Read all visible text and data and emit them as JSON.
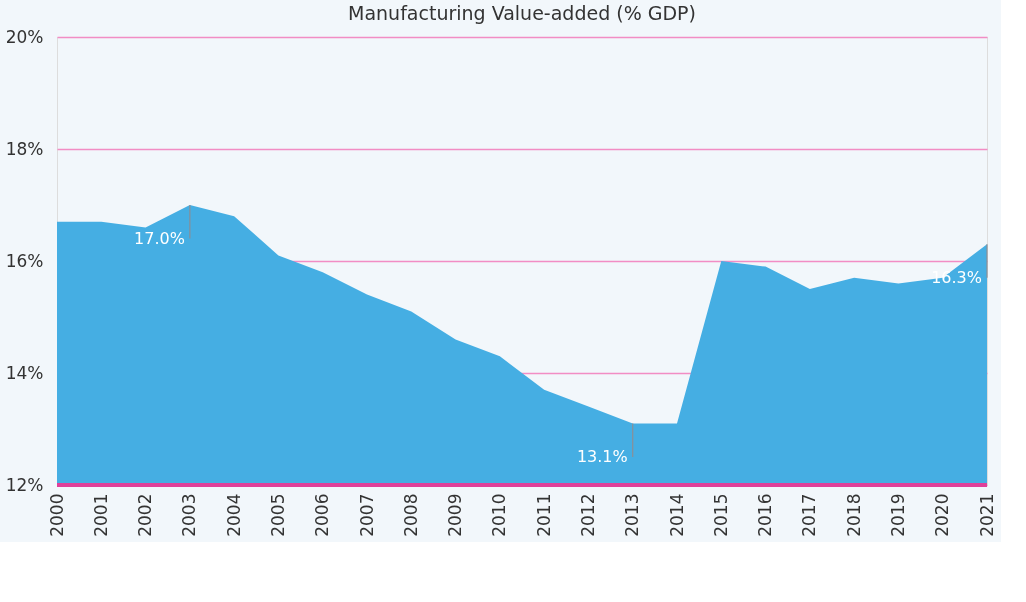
{
  "chart_data": {
    "type": "area",
    "title": "Manufacturing Value-added (% GDP)",
    "categories": [
      "2000",
      "2001",
      "2002",
      "2003",
      "2004",
      "2005",
      "2006",
      "2007",
      "2008",
      "2009",
      "2010",
      "2011",
      "2012",
      "2013",
      "2014",
      "2015",
      "2016",
      "2017",
      "2018",
      "2019",
      "2020",
      "2021"
    ],
    "values": [
      16.7,
      16.7,
      16.6,
      17.0,
      16.8,
      16.1,
      15.8,
      15.4,
      15.1,
      14.6,
      14.3,
      13.7,
      13.4,
      13.1,
      13.1,
      16.0,
      15.9,
      15.5,
      15.7,
      15.6,
      15.7,
      16.3
    ],
    "value_labels": [
      null,
      null,
      null,
      "17.0%",
      null,
      null,
      null,
      null,
      null,
      null,
      null,
      null,
      null,
      "13.1%",
      null,
      null,
      null,
      null,
      null,
      null,
      null,
      "16.3%"
    ],
    "color": "#45aee3",
    "ylim": [
      12,
      20
    ],
    "yticks": [
      {
        "value": 12,
        "label": "12%"
      },
      {
        "value": 14,
        "label": "14%"
      },
      {
        "value": 16,
        "label": "16%"
      },
      {
        "value": 18,
        "label": "18%"
      },
      {
        "value": 20,
        "label": "20%"
      }
    ],
    "grid": "y"
  }
}
